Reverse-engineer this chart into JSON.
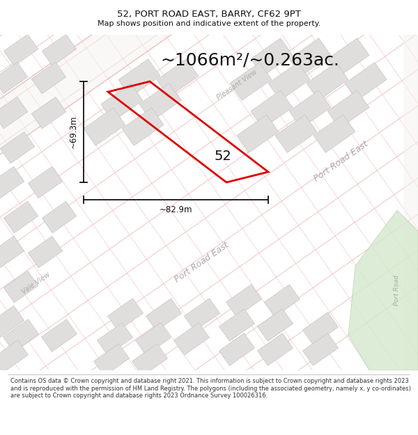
{
  "title_line1": "52, PORT ROAD EAST, BARRY, CF62 9PT",
  "title_line2": "Map shows position and indicative extent of the property.",
  "area_text": "~1066m²/~0.263ac.",
  "label_52": "52",
  "dim_width": "~82.9m",
  "dim_height": "~69.3m",
  "footer_text": "Contains OS data © Crown copyright and database right 2021. This information is subject to Crown copyright and database rights 2023 and is reproduced with the permission of HM Land Registry. The polygons (including the associated geometry, namely x, y co-ordinates) are subject to Crown copyright and database rights 2023 Ordnance Survey 100026316.",
  "map_bg": "#f7f6f4",
  "road_outline_color": "#f0c0c0",
  "road_fill_color": "#f8f4f2",
  "block_fill": "#e0dedd",
  "block_edge": "#c8c4c0",
  "plot_color": "#dd0000",
  "text_color": "#111111",
  "dim_color": "#111111",
  "street_label_color": "#aaaaaa",
  "green_color": "#d4e8cc",
  "green_edge": "#b0c8a8",
  "title_fontsize": 9.5,
  "subtitle_fontsize": 8.0,
  "area_fontsize": 18,
  "dim_fontsize": 8.5,
  "label_fontsize": 14,
  "footer_fontsize": 6.0,
  "street_fontsize": 9.0
}
